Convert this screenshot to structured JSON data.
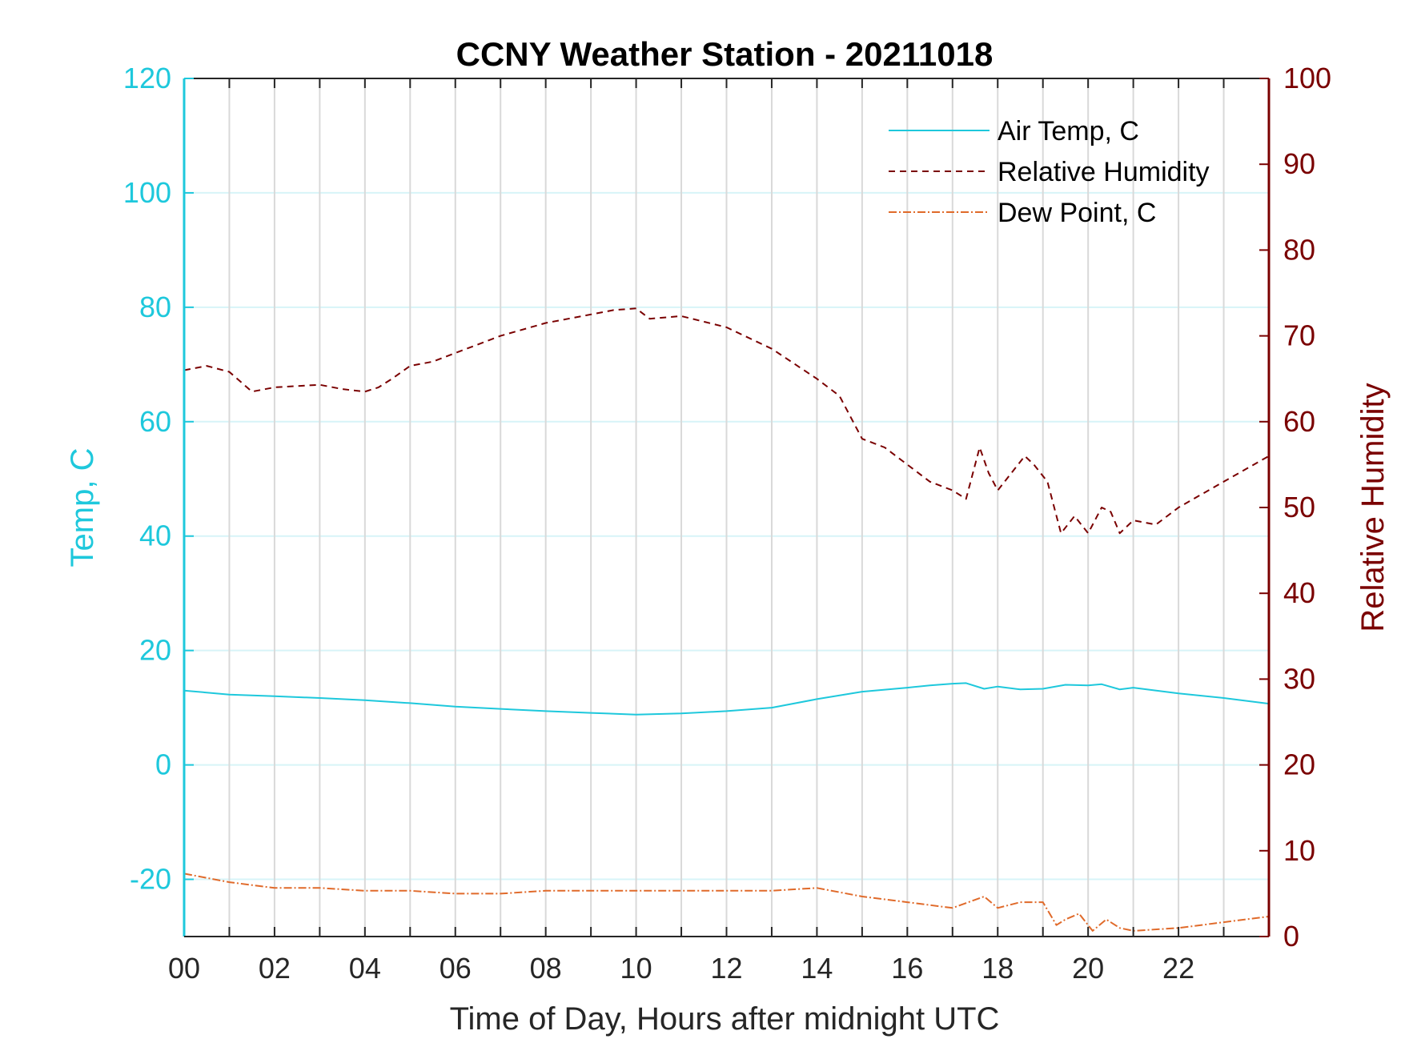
{
  "chart_data": {
    "type": "line",
    "title": "CCNY Weather Station - 20211018",
    "xlabel": "Time of Day, Hours after midnight UTC",
    "ylabel_left": "Temp, C",
    "ylabel_right": "Relative Humidity",
    "xlim": [
      0,
      24
    ],
    "ylim_left": [
      -30,
      120
    ],
    "ylim_right": [
      0,
      100
    ],
    "x_tick_values": [
      0,
      2,
      4,
      6,
      8,
      10,
      12,
      14,
      16,
      18,
      20,
      22
    ],
    "x_tick_labels": [
      "00",
      "02",
      "04",
      "06",
      "08",
      "10",
      "12",
      "14",
      "16",
      "18",
      "20",
      "22"
    ],
    "y_left_ticks": [
      120,
      100,
      80,
      60,
      40,
      20,
      0,
      -20
    ],
    "y_right_ticks": [
      100,
      90,
      80,
      70,
      60,
      50,
      40,
      30,
      20,
      10,
      0
    ],
    "grid": true,
    "legend_position": "top-right",
    "colors": {
      "temp": "#1ec8dc",
      "humidity": "#7a0000",
      "dewpoint": "#e06a2a",
      "grid": "#d9d9d9",
      "hgrid": "#d7f4f8"
    },
    "series": [
      {
        "name": "Air Temp, C",
        "axis": "left",
        "style": "solid",
        "x": [
          0,
          1,
          2,
          3,
          4,
          5,
          6,
          7,
          8,
          9,
          10,
          11,
          12,
          13,
          14,
          15,
          16,
          16.5,
          17,
          17.3,
          17.7,
          18,
          18.5,
          19,
          19.5,
          20,
          20.3,
          20.7,
          21,
          22,
          23,
          24
        ],
        "values": [
          13,
          12.3,
          12,
          11.7,
          11.3,
          10.8,
          10.2,
          9.8,
          9.4,
          9.1,
          8.8,
          9,
          9.4,
          10,
          11.5,
          12.8,
          13.5,
          13.9,
          14.2,
          14.3,
          13.3,
          13.7,
          13.2,
          13.3,
          14,
          13.9,
          14.1,
          13.2,
          13.5,
          12.5,
          11.7,
          10.7
        ]
      },
      {
        "name": "Relative Humidity",
        "axis": "right",
        "style": "dashed",
        "x": [
          0,
          0.5,
          1,
          1.5,
          2,
          3,
          3.5,
          4,
          4.3,
          4.6,
          5,
          5.5,
          6,
          7,
          8,
          8.5,
          9,
          9.5,
          10,
          10.3,
          11,
          12,
          13,
          14,
          14.5,
          15,
          15.5,
          16,
          16.5,
          17,
          17.3,
          17.6,
          17.8,
          18,
          18.3,
          18.6,
          18.8,
          19.1,
          19.4,
          19.7,
          20,
          20.3,
          20.5,
          20.7,
          21,
          21.5,
          22,
          23,
          24
        ],
        "values": [
          66,
          66.5,
          65.8,
          63.5,
          64,
          64.3,
          63.8,
          63.5,
          64,
          65,
          66.5,
          67,
          68,
          70,
          71.5,
          72,
          72.5,
          73,
          73.2,
          72,
          72.3,
          71,
          68.5,
          65,
          63,
          58,
          57,
          55,
          53,
          52,
          51,
          57,
          54,
          52,
          54,
          56,
          55,
          53,
          47,
          49,
          47,
          50,
          49.5,
          47,
          48.5,
          48,
          50,
          53,
          56
        ]
      },
      {
        "name": "Dew Point, C",
        "axis": "left",
        "style": "dash-dot",
        "x": [
          0,
          1,
          2,
          3,
          4,
          5,
          6,
          7,
          8,
          9,
          10,
          11,
          12,
          13,
          14,
          15,
          16,
          17,
          17.7,
          18,
          18.5,
          19,
          19.3,
          19.5,
          19.8,
          20.1,
          20.4,
          20.7,
          21,
          22,
          23,
          24
        ],
        "values": [
          -19,
          -20.5,
          -21.5,
          -21.5,
          -22,
          -22,
          -22.5,
          -22.5,
          -22,
          -22,
          -22,
          -22,
          -22,
          -22,
          -21.5,
          -23,
          -24,
          -25,
          -23,
          -25,
          -24,
          -24,
          -28,
          -27,
          -26,
          -29,
          -27,
          -28.5,
          -29,
          -28.5,
          -27.5,
          -26.5
        ]
      }
    ]
  }
}
